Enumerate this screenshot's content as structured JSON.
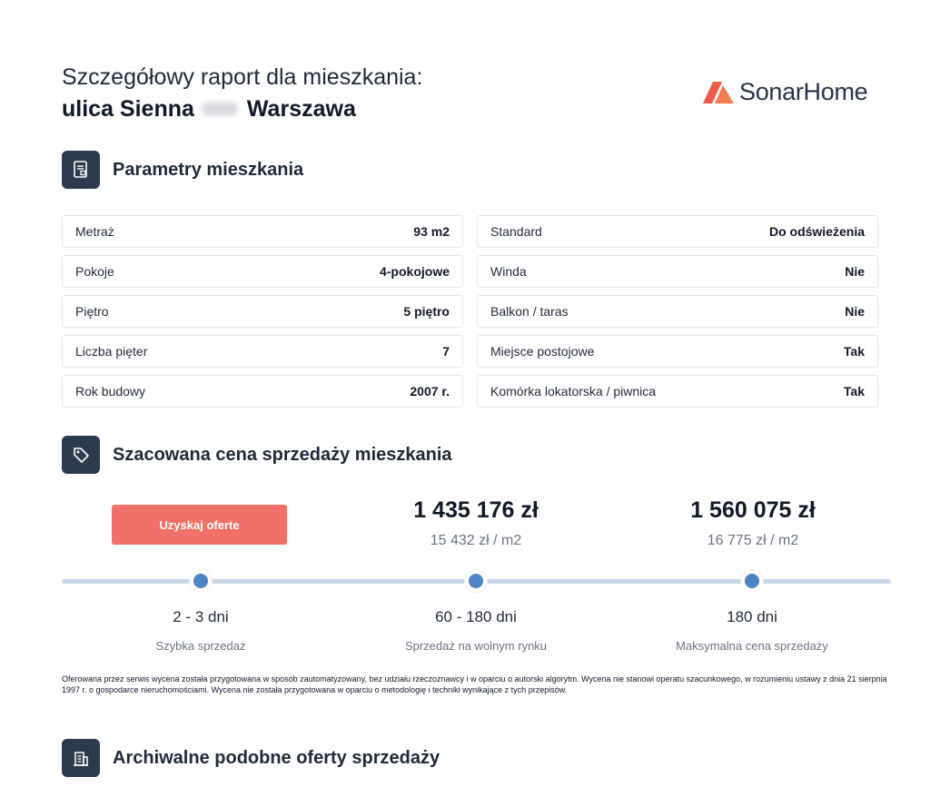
{
  "header": {
    "title": "Szczegółowy raport dla mieszkania:",
    "address_street": "ulica Sienna",
    "address_city": "Warszawa"
  },
  "logo": {
    "text": "SonarHome",
    "color": "#f05a46"
  },
  "sections": {
    "params": {
      "title": "Parametry mieszkania",
      "icon": "document-icon"
    },
    "price": {
      "title": "Szacowana cena sprzedaży mieszkania",
      "icon": "price-tag-icon"
    },
    "archive": {
      "title": "Archiwalne podobne oferty sprzedaży",
      "icon": "building-icon"
    }
  },
  "params": {
    "left": [
      {
        "label": "Metraż",
        "value": "93 m2"
      },
      {
        "label": "Pokoje",
        "value": "4-pokojowe"
      },
      {
        "label": "Piętro",
        "value": "5 piętro"
      },
      {
        "label": "Liczba pięter",
        "value": "7"
      },
      {
        "label": "Rok budowy",
        "value": "2007 r."
      }
    ],
    "right": [
      {
        "label": "Standard",
        "value": "Do odświeżenia"
      },
      {
        "label": "Winda",
        "value": "Nie"
      },
      {
        "label": "Balkon / taras",
        "value": "Nie"
      },
      {
        "label": "Miejsce postojowe",
        "value": "Tak"
      },
      {
        "label": "Komórka lokatorska / piwnica",
        "value": "Tak"
      }
    ]
  },
  "price": {
    "cta_label": "Uzyskaj oferte",
    "cta_color": "#f07167",
    "mid": {
      "total": "1 435 176 zł",
      "per_m2": "15 432 zł / m2"
    },
    "max": {
      "total": "1 560 075 zł",
      "per_m2": "16 775 zł / m2"
    },
    "steps": [
      {
        "days": "2 - 3 dni",
        "label": "Szybka sprzedaż"
      },
      {
        "days": "60 - 180 dni",
        "label": "Sprzedaż na wolnym rynku"
      },
      {
        "days": "180 dni",
        "label": "Maksymalna cena sprzedaży"
      }
    ]
  },
  "disclaimer": "Oferowana przez serwis wycena została przygotowana w sposób zautomatyzowany, bez udziału rzeczoznawcy i w oparciu o autorski algorytm. Wycena nie stanowi operatu szacunkowego, w rozumieniu ustawy z dnia 21 sierpnia 1997 r. o gospodarce nieruchomościami. Wycena nie została przygotowana w oparciu o metodologię i techniki wynikające z tych przepisów."
}
